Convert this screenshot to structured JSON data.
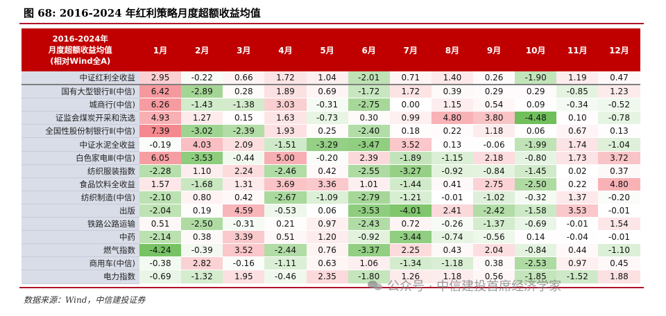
{
  "title": "图 68: 2016-2024 年红利策略月度超额收益均值",
  "header": {
    "corner_lines": [
      "2016-2024年",
      "月度超额收益均值",
      "(相对Wind全A)"
    ],
    "months": [
      "1月",
      "2月",
      "3月",
      "4月",
      "5月",
      "6月",
      "7月",
      "8月",
      "9月",
      "10月",
      "11月",
      "12月"
    ]
  },
  "rows": [
    {
      "label": "中证红利全收益",
      "values": [
        "2.95",
        "-0.22",
        "0.66",
        "1.72",
        "1.04",
        "-2.01",
        "0.71",
        "1.40",
        "0.26",
        "-1.90",
        "1.19",
        "0.47"
      ]
    },
    {
      "label": "国有大型银行Ⅱ(中信)",
      "values": [
        "6.42",
        "-2.89",
        "0.28",
        "1.89",
        "0.69",
        "-1.72",
        "1.72",
        "0.39",
        "0.29",
        "0.29",
        "-0.85",
        "1.23"
      ]
    },
    {
      "label": "城商行(中信)",
      "values": [
        "6.26",
        "-1.43",
        "-1.38",
        "3.03",
        "-0.31",
        "-2.75",
        "0.00",
        "1.15",
        "0.54",
        "0.09",
        "-0.34",
        "-0.52"
      ]
    },
    {
      "label": "证监会煤炭开采和洗选",
      "values": [
        "4.93",
        "1.27",
        "0.15",
        "1.63",
        "-0.73",
        "0.30",
        "0.99",
        "4.80",
        "3.80",
        "-4.48",
        "0.10",
        "-0.78"
      ]
    },
    {
      "label": "全国性股份制银行Ⅱ(中信)",
      "values": [
        "7.39",
        "-3.02",
        "-2.39",
        "1.93",
        "0.25",
        "-2.40",
        "0.18",
        "0.22",
        "1.18",
        "0.06",
        "0.67",
        "0.13"
      ]
    },
    {
      "label": "中证水泥全收益",
      "values": [
        "-0.19",
        "4.03",
        "2.09",
        "-1.51",
        "-3.29",
        "-3.47",
        "3.52",
        "0.13",
        "-0.06",
        "-1.99",
        "1.74",
        "-1.04"
      ]
    },
    {
      "label": "白色家电Ⅲ(中信)",
      "values": [
        "6.05",
        "-3.53",
        "-0.44",
        "5.00",
        "-0.20",
        "2.39",
        "-1.89",
        "-1.15",
        "2.18",
        "-0.80",
        "1.73",
        "3.72"
      ]
    },
    {
      "label": "纺织服装指数",
      "values": [
        "-2.28",
        "1.10",
        "2.24",
        "-2.46",
        "0.42",
        "-2.55",
        "-3.27",
        "-0.92",
        "-0.84",
        "-1.45",
        "0.02",
        "0.37"
      ]
    },
    {
      "label": "食品饮料全收益",
      "values": [
        "1.57",
        "-1.68",
        "1.31",
        "3.69",
        "3.36",
        "1.01",
        "-1.44",
        "0.41",
        "2.75",
        "-2.50",
        "0.22",
        "4.80"
      ]
    },
    {
      "label": "纺织制造(中信)",
      "values": [
        "-2.10",
        "0.80",
        "0.42",
        "-2.67",
        "-1.09",
        "-2.79",
        "-1.21",
        "-0.01",
        "-1.02",
        "-0.32",
        "1.37",
        "-0.20"
      ]
    },
    {
      "label": "出版",
      "values": [
        "-2.04",
        "0.19",
        "4.59",
        "-0.53",
        "0.06",
        "-3.53",
        "-4.01",
        "2.41",
        "-2.42",
        "-1.58",
        "3.53",
        "-0.01"
      ]
    },
    {
      "label": "铁路公路运输",
      "values": [
        "0.51",
        "-2.50",
        "-0.31",
        "0.21",
        "0.97",
        "-2.43",
        "0.72",
        "-0.26",
        "-1.37",
        "-0.69",
        "-0.01",
        "1.54"
      ]
    },
    {
      "label": "中药",
      "values": [
        "-2.14",
        "0.38",
        "3.39",
        "0.51",
        "1.20",
        "-0.92",
        "-3.44",
        "-0.74",
        "-0.56",
        "0.14",
        "-0.04",
        "-0.01"
      ]
    },
    {
      "label": "燃气指数",
      "values": [
        "-4.24",
        "-0.39",
        "3.52",
        "-2.44",
        "0.76",
        "-3.37",
        "2.25",
        "0.43",
        "2.04",
        "-0.84",
        "0.44",
        "-1.10"
      ]
    },
    {
      "label": "商用车(中信)",
      "values": [
        "-0.38",
        "2.82",
        "-0.16",
        "-1.11",
        "0.63",
        "1.06",
        "-1.34",
        "-1.18",
        "0.38",
        "-2.53",
        "0.97",
        "0.45"
      ]
    },
    {
      "label": "电力指数",
      "values": [
        "-0.69",
        "-1.32",
        "1.95",
        "-0.46",
        "2.35",
        "-1.80",
        "1.26",
        "1.18",
        "0.56",
        "-1.85",
        "-1.52",
        "1.88"
      ]
    }
  ],
  "colors": {
    "header_bg": "#c00000",
    "positive_strong": "#f4898f",
    "negative_strong": "#6fbf5a",
    "neutral": "#ffffff",
    "label_bg": "#d9dde8"
  },
  "source": "数据来源：Wind，中信建投证券",
  "watermark": "公众号 · 中信建投首席经济学家"
}
